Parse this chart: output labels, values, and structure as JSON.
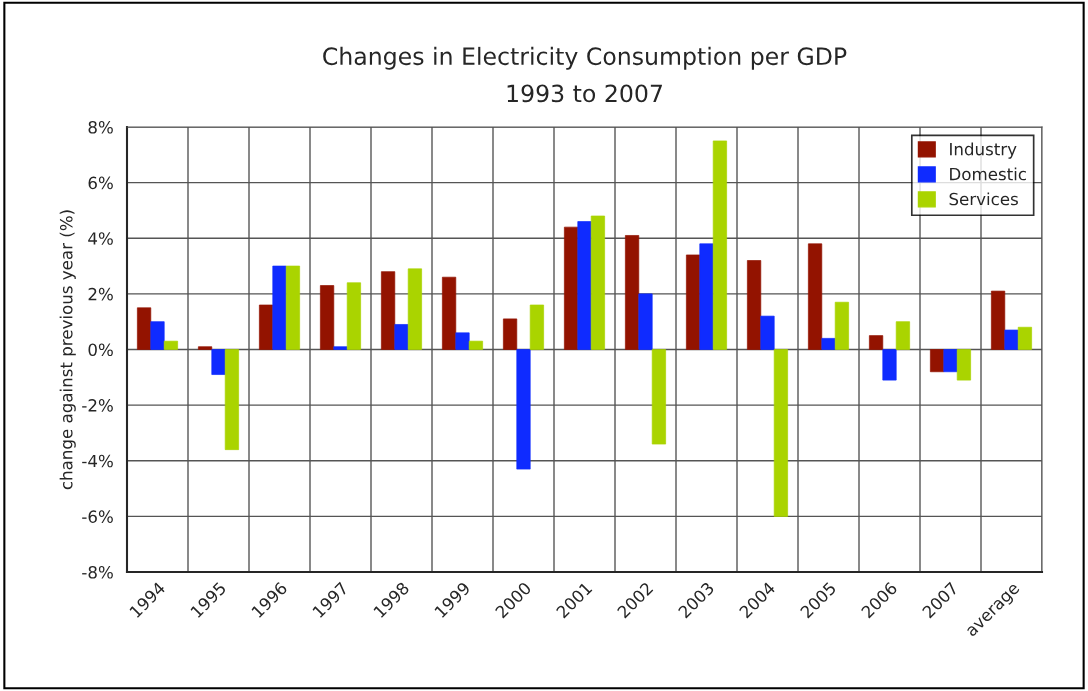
{
  "chart_data": {
    "type": "bar",
    "title": "Changes in Electricity Consumption per GDP\n1993 to 2007",
    "ylabel": "change against previous year (%)",
    "categories": [
      "1994",
      "1995",
      "1996",
      "1997",
      "1998",
      "1999",
      "2000",
      "2001",
      "2002",
      "2003",
      "2004",
      "2005",
      "2006",
      "2007",
      "average"
    ],
    "series": [
      {
        "name": "Industry",
        "color": "#931300",
        "values": [
          1.5,
          0.1,
          1.6,
          2.3,
          2.8,
          2.6,
          1.1,
          4.4,
          4.1,
          3.4,
          3.2,
          3.8,
          0.5,
          -0.8,
          2.1
        ]
      },
      {
        "name": "Domestic",
        "color": "#0f2bff",
        "values": [
          1.0,
          -0.9,
          3.0,
          0.1,
          0.9,
          0.6,
          -4.3,
          4.6,
          2.0,
          3.8,
          1.2,
          0.4,
          -1.1,
          -0.8,
          0.7
        ]
      },
      {
        "name": "Services",
        "color": "#aad400",
        "values": [
          0.3,
          -3.6,
          3.0,
          2.4,
          2.9,
          0.3,
          1.6,
          4.8,
          -3.4,
          7.5,
          -6.0,
          1.7,
          1.0,
          -1.1,
          0.8
        ]
      }
    ],
    "ylim": [
      -8,
      8
    ],
    "yticks": [
      {
        "value": -8,
        "label": "-8%"
      },
      {
        "value": -6,
        "label": "-6%"
      },
      {
        "value": -4,
        "label": "-4%"
      },
      {
        "value": -2,
        "label": "-2%"
      },
      {
        "value": 0,
        "label": "0%"
      },
      {
        "value": 2,
        "label": "2%"
      },
      {
        "value": 4,
        "label": "4%"
      },
      {
        "value": 6,
        "label": "6%"
      },
      {
        "value": 8,
        "label": "8%"
      }
    ],
    "grid": true,
    "legend": "top right"
  }
}
